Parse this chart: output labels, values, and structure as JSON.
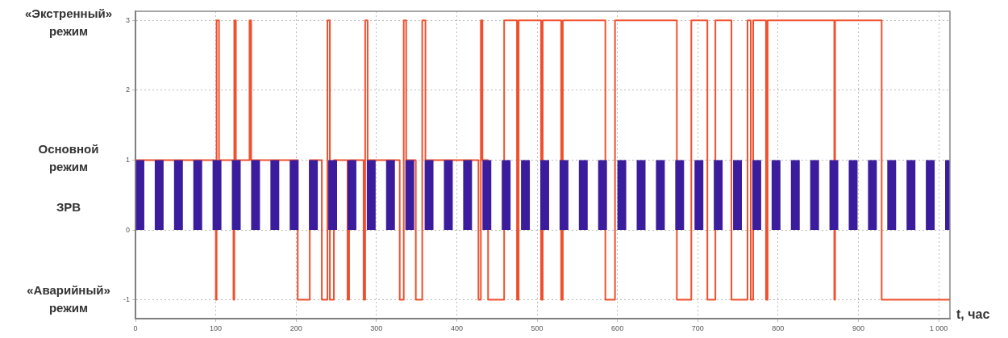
{
  "chart_data": {
    "type": "step",
    "xlabel": "t, час",
    "xlim": [
      0,
      1014
    ],
    "xticks": [
      0,
      100,
      200,
      300,
      400,
      500,
      600,
      700,
      800,
      900,
      {
        "value": 1000,
        "label": "1 000"
      }
    ],
    "ylim": [
      -1.27,
      3.13
    ],
    "yticks": [
      -1,
      0,
      1,
      2,
      3
    ],
    "grid": true,
    "legend": false,
    "annotations": [
      "«Экстренный»\nрежим",
      "Основной\nрежим",
      "ЗРВ",
      "«Аварийный»\nрежим"
    ],
    "series": [
      {
        "type": "area",
        "color": "#3b1c9c",
        "x": [
          0,
          11,
          24,
          35,
          48,
          59,
          72,
          83,
          96,
          107,
          120,
          131,
          144,
          155,
          168,
          179,
          192,
          203,
          216,
          227,
          240,
          251,
          264,
          275,
          288,
          299,
          312,
          323,
          336,
          347,
          360,
          371,
          384,
          395,
          408,
          419,
          432,
          443,
          456,
          467,
          480,
          491,
          504,
          515,
          528,
          539,
          552,
          563,
          576,
          587,
          600,
          611,
          624,
          635,
          648,
          659,
          672,
          683,
          696,
          707,
          720,
          731,
          744,
          755,
          768,
          779,
          792,
          803,
          816,
          827,
          840,
          851,
          864,
          875,
          888,
          899,
          912,
          923,
          936,
          947,
          960,
          971,
          984,
          995,
          1008,
          1014
        ],
        "values": [
          1,
          0,
          1,
          0,
          1,
          0,
          1,
          0,
          1,
          0,
          1,
          0,
          1,
          0,
          1,
          0,
          1,
          0,
          1,
          0,
          1,
          0,
          1,
          0,
          1,
          0,
          1,
          0,
          1,
          0,
          1,
          0,
          1,
          0,
          1,
          0,
          1,
          0,
          1,
          0,
          1,
          0,
          1,
          0,
          1,
          0,
          1,
          0,
          1,
          0,
          1,
          0,
          1,
          0,
          1,
          0,
          1,
          0,
          1,
          0,
          1,
          0,
          1,
          0,
          1,
          0,
          1,
          0,
          1,
          0,
          1,
          0,
          1,
          0,
          1,
          0,
          1,
          0,
          1,
          0,
          1,
          0,
          1,
          0,
          1,
          1
        ]
      },
      {
        "type": "step",
        "color": "#f0502e",
        "x": [
          0,
          100,
          101,
          104,
          122,
          123,
          125,
          142,
          144,
          202,
          217,
          232,
          239,
          242,
          247,
          264,
          266,
          284,
          286,
          289,
          329,
          334,
          337,
          349,
          357,
          361,
          427,
          430,
          432,
          439,
          459,
          475,
          477,
          505,
          507,
          530,
          532,
          585,
          597,
          674,
          692,
          712,
          722,
          742,
          762,
          766,
          769,
          785,
          787,
          870,
          871,
          929,
          1014
        ],
        "values": [
          1,
          -1,
          3,
          1,
          -1,
          3,
          1,
          3,
          1,
          -1,
          1,
          -1,
          3,
          -1,
          1,
          -1,
          1,
          -1,
          3,
          1,
          -1,
          3,
          1,
          -1,
          3,
          1,
          -1,
          3,
          1,
          -1,
          3,
          -1,
          3,
          -1,
          3,
          -1,
          3,
          -1,
          3,
          -1,
          3,
          -1,
          3,
          -1,
          3,
          -1,
          3,
          -1,
          3,
          -1,
          3,
          -1,
          -1
        ]
      }
    ]
  }
}
